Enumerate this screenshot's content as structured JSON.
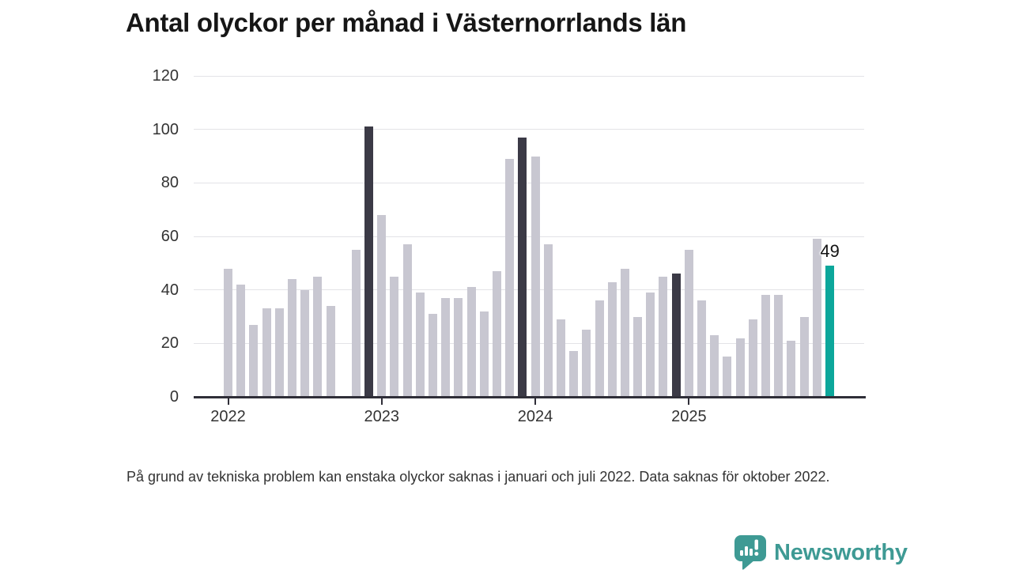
{
  "title": "Antal olyckor per månad i Västernorrlands län",
  "footnote": "På grund av tekniska problem kan enstaka olyckor saknas i januari och juli 2022. Data saknas för oktober 2022.",
  "logo": {
    "text": "Newsworthy"
  },
  "colors": {
    "bar_default": "#c8c7d1",
    "bar_dark": "#3b3a46",
    "bar_highlight": "#0ca79b",
    "axis": "#2f2e38",
    "grid": "#e3e3e7",
    "tick_label": "#333333",
    "title_text": "#161616",
    "logo_teal": "#3e9a94"
  },
  "chart_data": {
    "type": "bar",
    "title": "Antal olyckor per månad i Västernorrlands län",
    "xlabel": "",
    "ylabel": "",
    "ylim": [
      0,
      120
    ],
    "yticks": [
      0,
      20,
      40,
      60,
      80,
      100,
      120
    ],
    "grid": true,
    "legend": false,
    "year_ticks": [
      "2022",
      "2023",
      "2024",
      "2025"
    ],
    "months": [
      "2022-01",
      "2022-02",
      "2022-03",
      "2022-04",
      "2022-05",
      "2022-06",
      "2022-07",
      "2022-08",
      "2022-09",
      "2022-10",
      "2022-11",
      "2022-12",
      "2023-01",
      "2023-02",
      "2023-03",
      "2023-04",
      "2023-05",
      "2023-06",
      "2023-07",
      "2023-08",
      "2023-09",
      "2023-10",
      "2023-11",
      "2023-12",
      "2024-01",
      "2024-02",
      "2024-03",
      "2024-04",
      "2024-05",
      "2024-06",
      "2024-07",
      "2024-08",
      "2024-09",
      "2024-10",
      "2024-11",
      "2024-12",
      "2025-01",
      "2025-02",
      "2025-03",
      "2025-04",
      "2025-05",
      "2025-06",
      "2025-07",
      "2025-08",
      "2025-09",
      "2025-10",
      "2025-11",
      "2025-12"
    ],
    "values": [
      48,
      42,
      27,
      33,
      33,
      44,
      40,
      45,
      34,
      null,
      55,
      101,
      68,
      45,
      57,
      39,
      31,
      37,
      37,
      41,
      32,
      47,
      89,
      97,
      90,
      57,
      29,
      17,
      25,
      36,
      43,
      48,
      30,
      39,
      45,
      46,
      55,
      36,
      23,
      15,
      22,
      29,
      38,
      38,
      21,
      30,
      59,
      49
    ],
    "dark_indices": [
      11,
      23,
      35
    ],
    "highlight_index": 47,
    "missing_months": [
      "2022-10"
    ],
    "annotation": "49"
  }
}
